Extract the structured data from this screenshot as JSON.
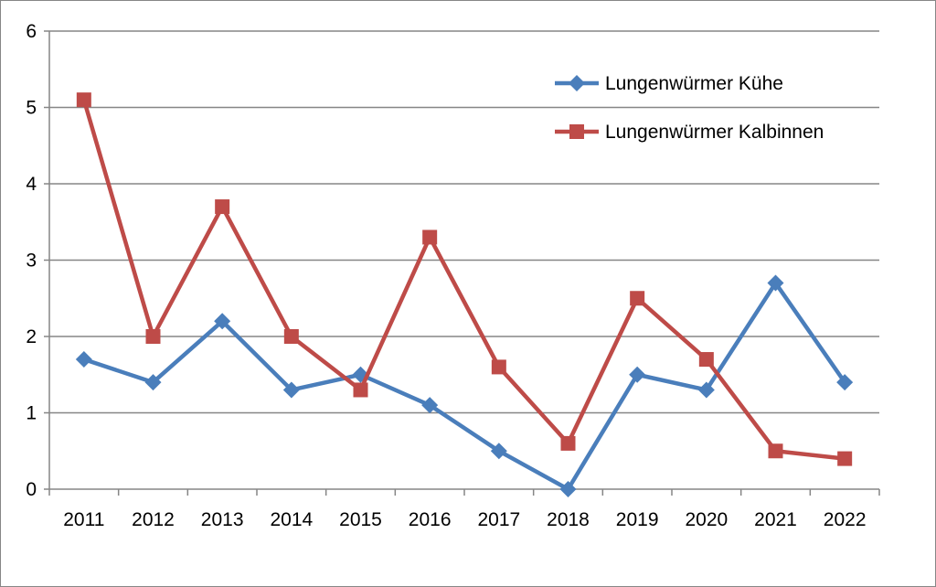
{
  "chart_data": {
    "type": "line",
    "title": "",
    "xlabel": "",
    "ylabel": "",
    "categories": [
      "2011",
      "2012",
      "2013",
      "2014",
      "2015",
      "2016",
      "2017",
      "2018",
      "2019",
      "2020",
      "2021",
      "2022"
    ],
    "ylim": [
      0,
      6
    ],
    "yticks": [
      "0",
      "1",
      "2",
      "3",
      "4",
      "5",
      "6"
    ],
    "grid": true,
    "legend_position": "top-right",
    "series": [
      {
        "name": "Lungenwürmer Kühe",
        "color": "#4a7ebb",
        "marker": "diamond",
        "values": [
          1.7,
          1.4,
          2.2,
          1.3,
          1.5,
          1.1,
          0.5,
          0.0,
          1.5,
          1.3,
          2.7,
          1.4
        ]
      },
      {
        "name": "Lungenwürmer Kalbinnen",
        "color": "#be4b48",
        "marker": "square",
        "values": [
          5.1,
          2.0,
          3.7,
          2.0,
          1.3,
          3.3,
          1.6,
          0.6,
          2.5,
          1.7,
          0.5,
          0.4
        ]
      }
    ]
  }
}
